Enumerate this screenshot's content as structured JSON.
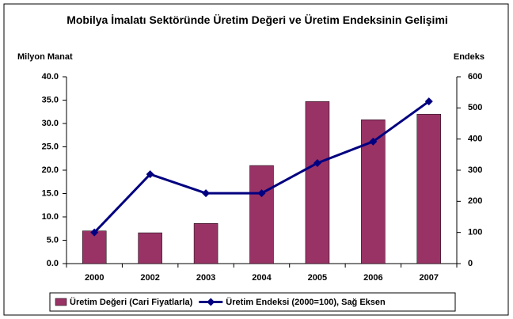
{
  "chart_data": {
    "type": "bar",
    "title": "Mobilya İmalatı Sektöründe Üretim Değeri ve Üretim Endeksinin Gelişimi",
    "y_label": "Milyon Manat",
    "y2_label": "Endeks",
    "categories": [
      "2000",
      "2002",
      "2003",
      "2004",
      "2005",
      "2006",
      "2007"
    ],
    "series": [
      {
        "name": "Üretim Değeri (Cari Fiyatlarla)",
        "type": "bar",
        "color": "#993366",
        "values": [
          7.0,
          6.6,
          8.6,
          21.0,
          34.7,
          30.8,
          32.0
        ]
      },
      {
        "name": "Üretim Endeksi (2000=100), Sağ Eksen",
        "type": "line",
        "axis": "y2",
        "color": "#000080",
        "values": [
          100,
          287,
          226,
          226,
          323,
          392,
          521
        ]
      }
    ],
    "ylim": [
      0,
      40
    ],
    "yticks": [
      {
        "value": 0,
        "label": "0.0"
      },
      {
        "value": 5,
        "label": "5.0"
      },
      {
        "value": 10,
        "label": "10.0"
      },
      {
        "value": 15,
        "label": "15.0"
      },
      {
        "value": 20,
        "label": "20.0"
      },
      {
        "value": 25,
        "label": "25.0"
      },
      {
        "value": 30,
        "label": "30.0"
      },
      {
        "value": 35,
        "label": "35.0"
      },
      {
        "value": 40,
        "label": "40.0"
      }
    ],
    "y2lim": [
      0,
      600
    ],
    "y2ticks": [
      0,
      100,
      200,
      300,
      400,
      500,
      600
    ],
    "legend": "bottom"
  }
}
